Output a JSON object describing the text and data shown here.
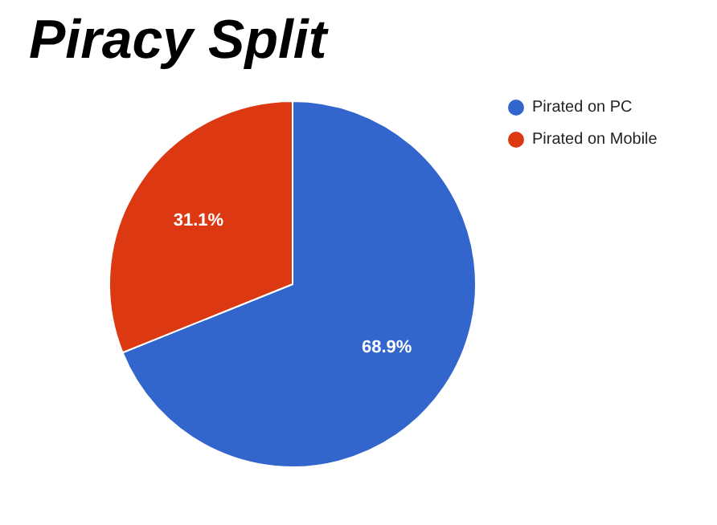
{
  "chart_data": {
    "type": "pie",
    "title": "Piracy Split",
    "categories": [
      "Pirated on PC",
      "Pirated on Mobile"
    ],
    "values": [
      68.9,
      31.1
    ],
    "colors": [
      "#3366cc",
      "#dc3912"
    ],
    "value_labels": [
      "68.9%",
      "31.1%"
    ],
    "legend": "top right"
  }
}
